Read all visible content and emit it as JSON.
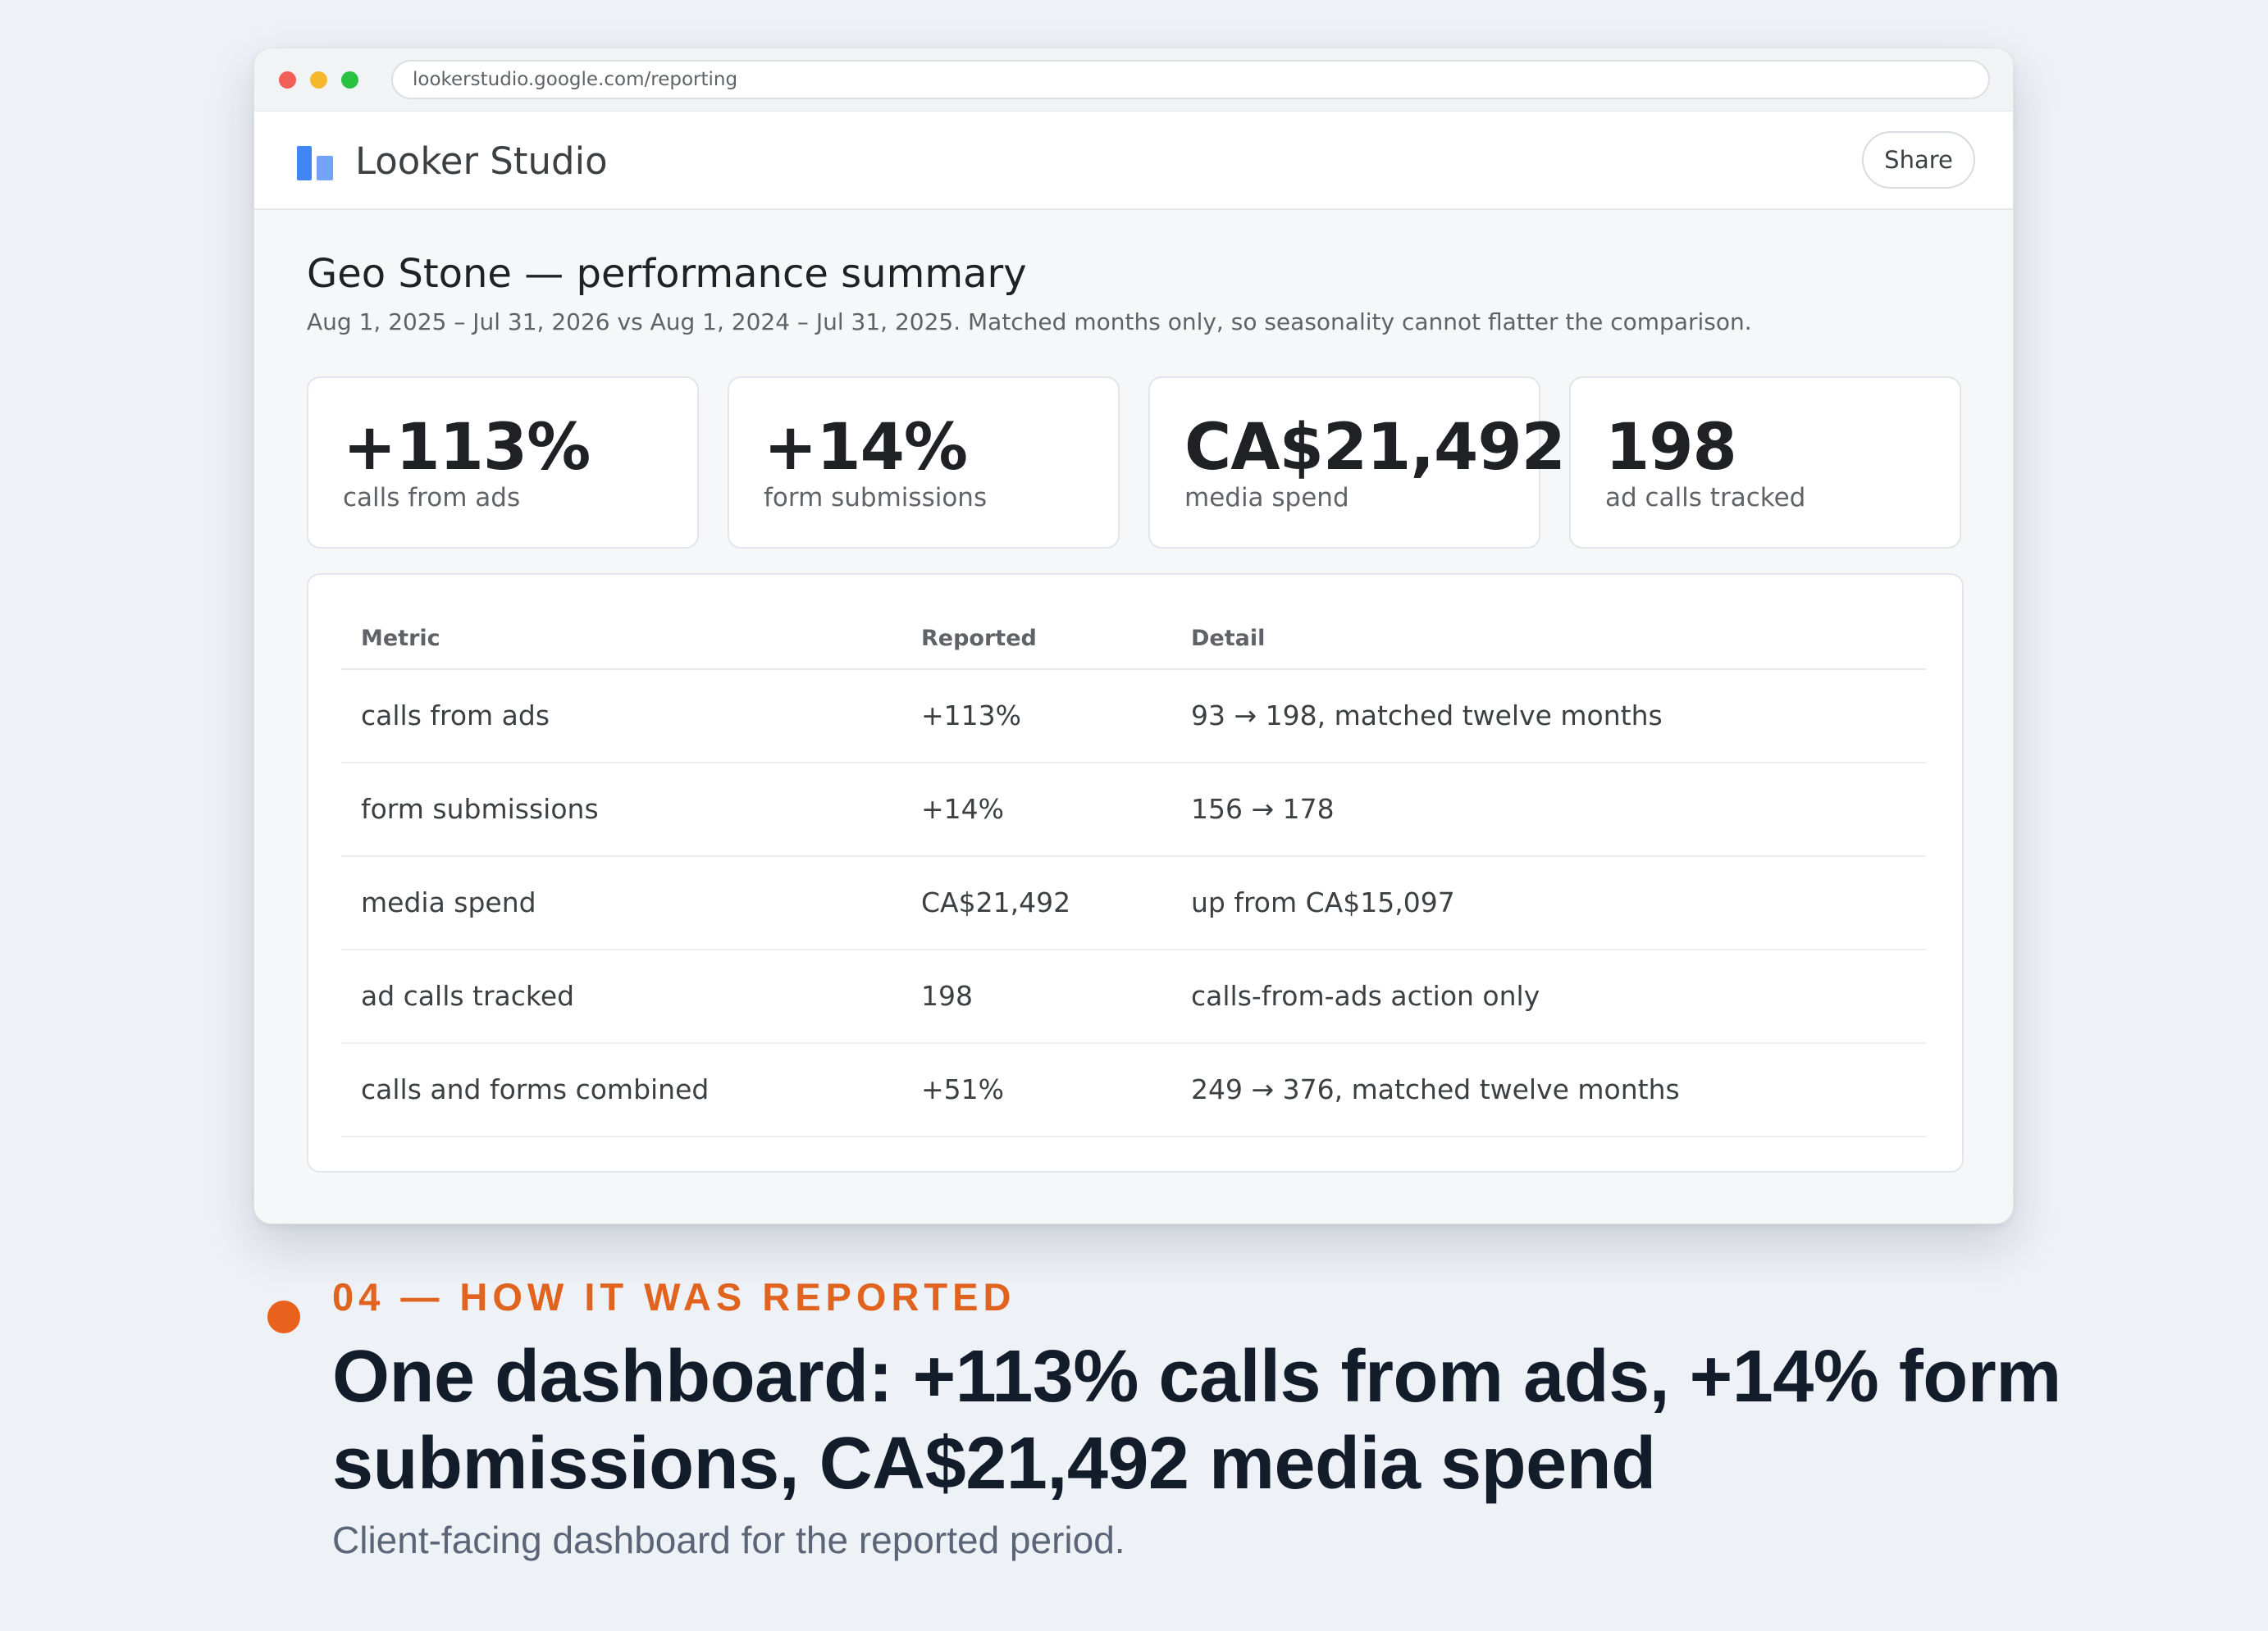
{
  "browser": {
    "url": "lookerstudio.google.com/reporting"
  },
  "app": {
    "name": "Looker Studio",
    "share_label": "Share"
  },
  "report": {
    "title": "Geo Stone — performance summary",
    "subtitle": "Aug 1, 2025 – Jul 31, 2026 vs Aug 1, 2024 – Jul 31, 2025. Matched months only, so seasonality cannot flatter the comparison."
  },
  "kpis": [
    {
      "value": "+113%",
      "label": "calls from ads"
    },
    {
      "value": "+14%",
      "label": "form submissions"
    },
    {
      "value": "CA$21,492",
      "label": "media spend"
    },
    {
      "value": "198",
      "label": "ad calls tracked"
    }
  ],
  "table": {
    "headers": [
      "Metric",
      "Reported",
      "Detail"
    ],
    "rows": [
      {
        "metric": "calls from ads",
        "reported": "+113%",
        "detail": "93 → 198, matched twelve months"
      },
      {
        "metric": "form submissions",
        "reported": "+14%",
        "detail": "156 → 178"
      },
      {
        "metric": "media spend",
        "reported": "CA$21,492",
        "detail": "up from CA$15,097"
      },
      {
        "metric": "ad calls tracked",
        "reported": "198",
        "detail": "calls-from-ads action only"
      },
      {
        "metric": "calls and forms combined",
        "reported": "+51%",
        "detail": "249 → 376, matched twelve months"
      }
    ]
  },
  "caption": {
    "eyebrow": "04 — HOW IT WAS REPORTED",
    "headline": "One dashboard: +113% calls from ads, +14% form submissions, CA$21,492 media spend",
    "description": "Client-facing dashboard for the reported period.",
    "accent_color": "#e0641f"
  }
}
